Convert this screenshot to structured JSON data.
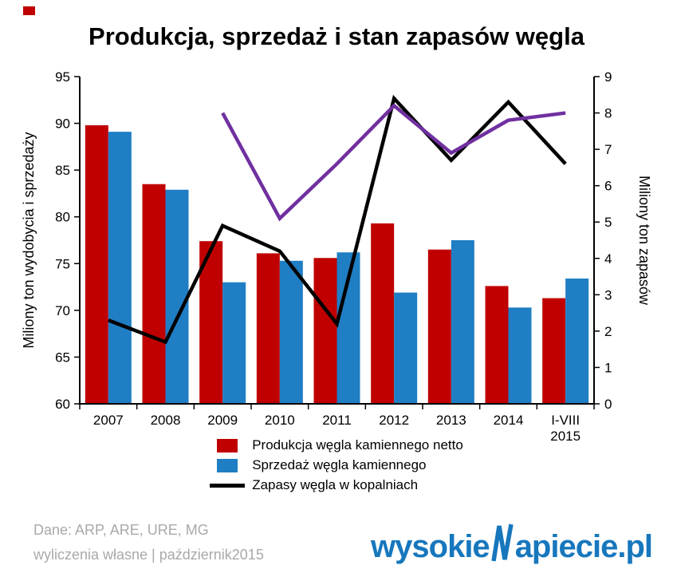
{
  "page": {
    "title": "Produkcja, sprzedaż i stan zapasów węgla",
    "footer": {
      "line1": "Dane: ARP, ARE, URE, MG",
      "line2": "wyliczenia własne  | październik2015"
    },
    "logo": {
      "prefix": "wysokie",
      "suffix": "apiecie.pl",
      "color": "#1777bd"
    },
    "corner_mark_color": "#c00000"
  },
  "chart_data": {
    "type": "bar",
    "title": "Produkcja, sprzedaż i stan zapasów węgla",
    "categories": [
      "2007",
      "2008",
      "2009",
      "2010",
      "2011",
      "2012",
      "2013",
      "2014",
      "I-VIII 2015"
    ],
    "left_axis": {
      "label": "Miliony ton wydobycia i sprzedaży",
      "min": 60,
      "max": 95,
      "step": 5
    },
    "right_axis": {
      "label": "Miliony ton zapasów",
      "min": 0,
      "max": 9,
      "step": 1
    },
    "grid": false,
    "legend_position": "bottom",
    "series": [
      {
        "name": "Produkcja węgla kamiennego netto",
        "type": "bar",
        "axis": "left",
        "color": "#c00000",
        "values": [
          89.8,
          83.5,
          77.4,
          76.1,
          75.6,
          79.3,
          76.5,
          72.6,
          71.3
        ]
      },
      {
        "name": "Sprzedaż węgla kamiennego",
        "type": "bar",
        "axis": "left",
        "color": "#1f7ec4",
        "values": [
          89.1,
          82.9,
          73.0,
          75.3,
          76.2,
          71.9,
          77.5,
          70.3,
          73.4
        ]
      },
      {
        "name": "Zapasy węgla w kopalniach",
        "type": "line",
        "axis": "right",
        "color": "#000000",
        "values": [
          2.3,
          1.7,
          4.9,
          4.2,
          2.2,
          8.4,
          6.7,
          8.3,
          6.6
        ]
      },
      {
        "name": "",
        "type": "line",
        "axis": "right",
        "color": "#7030a0",
        "values": [
          null,
          null,
          8.0,
          5.1,
          6.6,
          8.2,
          6.9,
          7.8,
          8.0
        ]
      }
    ],
    "legend": [
      {
        "swatch": "rect",
        "color": "#c00000",
        "label": "Produkcja węgla kamiennego netto"
      },
      {
        "swatch": "rect",
        "color": "#1f7ec4",
        "label": "Sprzedaż węgla kamiennego"
      },
      {
        "swatch": "line",
        "color": "#000000",
        "label": "Zapasy węgla w kopalniach"
      }
    ]
  }
}
